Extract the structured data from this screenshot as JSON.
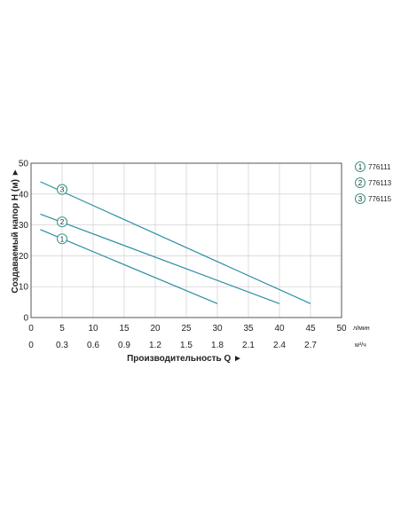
{
  "chart_data": {
    "type": "line",
    "x_lpm_ticks": [
      0,
      5,
      10,
      15,
      20,
      25,
      30,
      35,
      40,
      45,
      50
    ],
    "x_m3h_ticks": [
      "0",
      "0.3",
      "0.6",
      "0.9",
      "1.2",
      "1.5",
      "1.8",
      "2.1",
      "2.4",
      "2.7"
    ],
    "y_ticks": [
      0,
      10,
      20,
      30,
      40,
      50
    ],
    "xlim": [
      0,
      50
    ],
    "ylim": [
      0,
      50
    ],
    "x_unit_lpm": "л/мин",
    "x_unit_m3h": "м³/ч",
    "xlabel": "Производительность Q ►",
    "ylabel": "Создаваемый напор H (м) ►",
    "grid": true,
    "legend_position": "right",
    "colors": {
      "line": "#2b8fa3",
      "grid": "#c8c8c8",
      "axis": "#555555",
      "marker": "#3a9a8f"
    },
    "series": [
      {
        "name": "776111",
        "marker": "1",
        "x": [
          1.5,
          30
        ],
        "y": [
          28.5,
          4.5
        ],
        "marker_at": [
          5,
          25.5
        ]
      },
      {
        "name": "776113",
        "marker": "2",
        "x": [
          1.5,
          40
        ],
        "y": [
          33.5,
          4.5
        ],
        "marker_at": [
          5,
          31
        ]
      },
      {
        "name": "776115",
        "marker": "3",
        "x": [
          1.5,
          45
        ],
        "y": [
          44,
          4.5
        ],
        "marker_at": [
          5,
          41.5
        ]
      }
    ]
  }
}
